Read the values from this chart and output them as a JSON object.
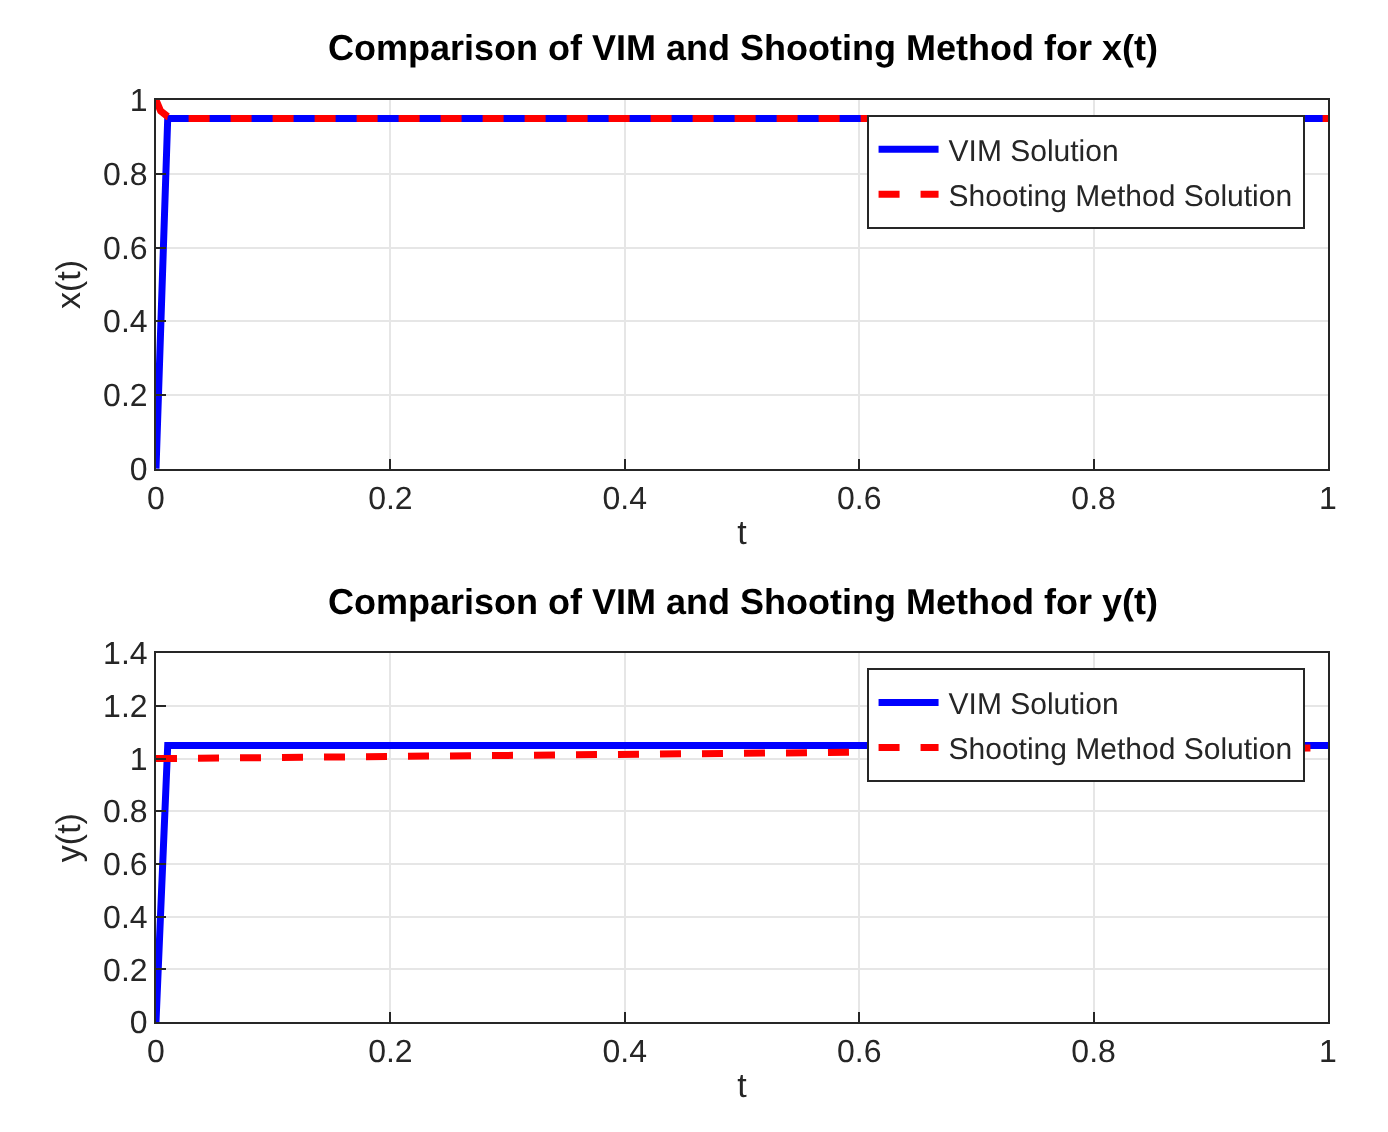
{
  "chart_data": [
    {
      "type": "line",
      "title": "Comparison of VIM and Shooting Method for x(t)",
      "xlabel": "t",
      "ylabel": "x(t)",
      "xlim": [
        0,
        1
      ],
      "xticks": [
        0,
        0.2,
        0.4,
        0.6,
        0.8,
        1
      ],
      "ylim": [
        0,
        1
      ],
      "yticks": [
        0,
        0.2,
        0.4,
        0.6,
        0.8,
        1
      ],
      "grid": true,
      "legend": "top right",
      "series": [
        {
          "name": "VIM Solution",
          "color": "#0000ff",
          "line_style": "solid",
          "x": [
            0,
            0.01,
            0.5,
            1
          ],
          "values": [
            0,
            0.95,
            0.95,
            0.95
          ]
        },
        {
          "name": "Shooting Method Solution",
          "color": "#ff0000",
          "line_style": "dashed",
          "x": [
            0,
            0.004,
            0.01,
            0.02,
            0.5,
            1
          ],
          "values": [
            1,
            0.97,
            0.955,
            0.95,
            0.95,
            0.95
          ]
        }
      ]
    },
    {
      "type": "line",
      "title": "Comparison of VIM and Shooting Method for y(t)",
      "xlabel": "t",
      "ylabel": "y(t)",
      "xlim": [
        0,
        1
      ],
      "xticks": [
        0,
        0.2,
        0.4,
        0.6,
        0.8,
        1
      ],
      "ylim": [
        0,
        1.4
      ],
      "yticks": [
        0,
        0.2,
        0.4,
        0.6,
        0.8,
        1,
        1.2,
        1.4
      ],
      "grid": true,
      "legend": "top right",
      "series": [
        {
          "name": "VIM Solution",
          "color": "#0000ff",
          "line_style": "solid",
          "x": [
            0,
            0.01,
            0.5,
            1
          ],
          "values": [
            0,
            1.05,
            1.05,
            1.05
          ]
        },
        {
          "name": "Shooting Method Solution",
          "color": "#ff0000",
          "line_style": "dashed",
          "x": [
            0,
            0.25,
            0.5,
            0.985
          ],
          "values": [
            1,
            1.01,
            1.02,
            1.04
          ]
        }
      ]
    }
  ]
}
